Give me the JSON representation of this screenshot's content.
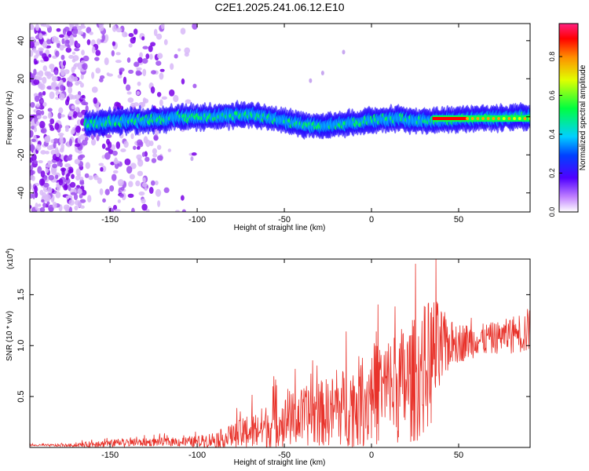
{
  "figure_title": "C2E1.2025.241.06.12.E10",
  "chart_data": [
    {
      "type": "heatmap",
      "title": "C2E1.2025.241.06.12.E10",
      "xlabel": "Height of straight line (km)",
      "ylabel": "Frequency (Hz)",
      "xlim": [
        -196,
        91
      ],
      "ylim": [
        -50,
        49
      ],
      "x_ticks": [
        -150,
        -100,
        -50,
        0,
        50
      ],
      "x_tick_labels": [
        "-150",
        "-100",
        "-50",
        "0",
        "50"
      ],
      "y_ticks": [
        -40,
        -20,
        0,
        20,
        40
      ],
      "y_tick_labels": [
        "-40",
        "-20",
        "0",
        "20",
        "40"
      ],
      "colorbar": {
        "label": "Normalized spectral amplitude",
        "range": [
          0,
          0.97
        ],
        "ticks": [
          0.0,
          0.2,
          0.4,
          0.6,
          0.8
        ],
        "tick_labels": [
          "0.0",
          "0.2",
          "0.4",
          "0.6",
          "0.8"
        ],
        "colormap": [
          "#ffffff",
          "#9a00ff",
          "#1a00ff",
          "#00c8ff",
          "#00ff50",
          "#dfff00",
          "#ffa000",
          "#ff0000",
          "#ff30a0"
        ]
      },
      "ridge": {
        "description_values": "dominant frequency track",
        "x_start": -164,
        "x_end": 91,
        "freq_center": [
          [
            -164,
            -4
          ],
          [
            -140,
            -2
          ],
          [
            -100,
            0
          ],
          [
            -70,
            1
          ],
          [
            -55,
            -1
          ],
          [
            -40,
            -4
          ],
          [
            -30,
            -5
          ],
          [
            -10,
            -3
          ],
          [
            10,
            -1
          ],
          [
            35,
            -2
          ],
          [
            60,
            -1
          ],
          [
            91,
            0
          ]
        ],
        "strong_segment_x": [
          35,
          91
        ],
        "grid": false
      }
    },
    {
      "type": "line",
      "xlabel": "Height of straight line (km)",
      "ylabel": "SNR (10 * v/v)",
      "y_multiplier_label": "(x10",
      "y_multiplier_exp": "4",
      "y_multiplier_close": ")",
      "xlim": [
        -196,
        91
      ],
      "ylim": [
        0,
        1.85
      ],
      "x_ticks": [
        -150,
        -100,
        -50,
        0,
        50
      ],
      "x_tick_labels": [
        "-150",
        "-100",
        "-50",
        "0",
        "50"
      ],
      "y_ticks": [
        0.5,
        1.0,
        1.5
      ],
      "y_tick_labels": [
        "0.5",
        "1.0",
        "1.5"
      ],
      "line_color": "#e8322a",
      "envelope": {
        "x": [
          -196,
          -170,
          -160,
          -140,
          -120,
          -100,
          -85,
          -70,
          -60,
          -40,
          -20,
          -5,
          10,
          25,
          35,
          45,
          60,
          75,
          91
        ],
        "base": [
          0.02,
          0.02,
          0.03,
          0.04,
          0.05,
          0.05,
          0.08,
          0.13,
          0.18,
          0.27,
          0.33,
          0.42,
          0.52,
          0.6,
          0.8,
          1.0,
          1.03,
          1.07,
          1.12
        ],
        "amplitude": [
          0.01,
          0.02,
          0.04,
          0.05,
          0.05,
          0.07,
          0.12,
          0.22,
          0.28,
          0.36,
          0.45,
          0.58,
          0.68,
          0.78,
          0.82,
          0.28,
          0.2,
          0.2,
          0.3
        ]
      },
      "peak": {
        "x": 37,
        "y": 1.85
      },
      "grid": false
    }
  ]
}
